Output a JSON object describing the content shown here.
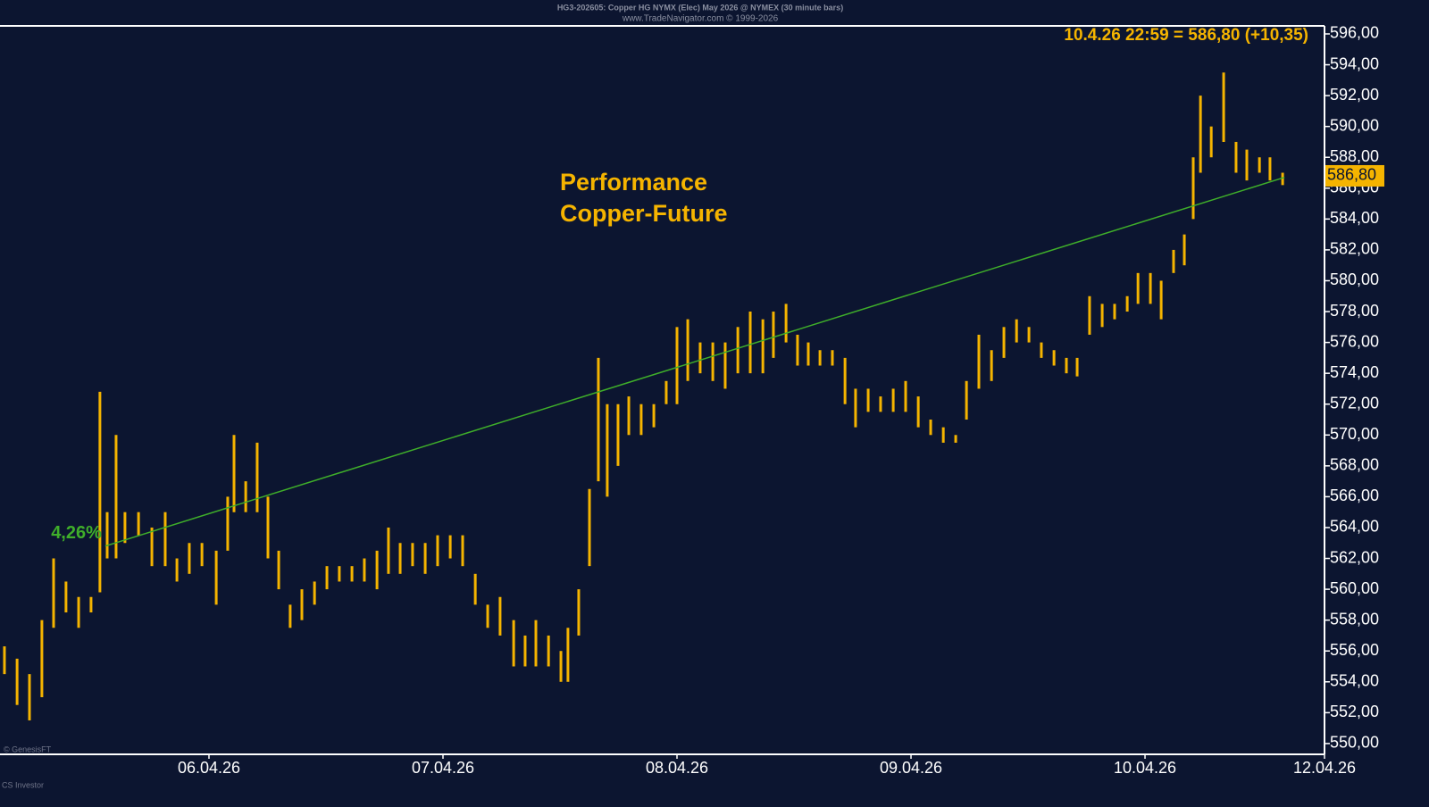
{
  "chart_data": {
    "type": "ohlc",
    "title": "HG3-202605: Copper HG NYMX (Elec) May 2026 @ NYMEX (30 minute bars)",
    "subtitle": "www.TradeNavigator.com © 1999-2026",
    "header_label": "10.4.26 22:59 = 586,80 (+10,35)",
    "annotation": [
      "Performance",
      "Copper-Future"
    ],
    "footer": [
      "© GenesisFT",
      "CS Investor"
    ],
    "color": "#f5b400",
    "last_price": {
      "value": 586.8,
      "label": "586,80"
    },
    "x": [
      5.126,
      5.18,
      5.233,
      5.286,
      5.336,
      5.389,
      5.443,
      5.496,
      5.534,
      5.565,
      5.603,
      5.641,
      5.699,
      5.756,
      5.813,
      5.863,
      5.916,
      5.97,
      6.031,
      6.08,
      6.107,
      6.157,
      6.206,
      6.252,
      6.298,
      6.347,
      6.397,
      6.451,
      6.504,
      6.557,
      6.611,
      6.664,
      6.718,
      6.767,
      6.817,
      6.87,
      6.924,
      6.977,
      7.031,
      7.084,
      7.138,
      7.191,
      7.244,
      7.302,
      7.351,
      7.397,
      7.451,
      7.504,
      7.534,
      7.58,
      7.626,
      7.664,
      7.702,
      7.748,
      7.794,
      7.847,
      7.901,
      7.954,
      8.0,
      8.046,
      8.099,
      8.153,
      8.206,
      8.26,
      8.313,
      8.367,
      8.412,
      8.466,
      8.515,
      8.561,
      8.611,
      8.664,
      8.718,
      8.763,
      8.817,
      8.87,
      8.924,
      8.977,
      9.031,
      9.084,
      9.138,
      9.191,
      9.237,
      9.29,
      9.344,
      9.397,
      9.451,
      9.504,
      9.557,
      9.611,
      9.664,
      9.71,
      9.763,
      9.817,
      9.87,
      9.924,
      9.97,
      10.023,
      10.069,
      10.122,
      10.168,
      10.206,
      10.237,
      10.283,
      10.336,
      10.389,
      10.435,
      10.489,
      10.534,
      10.588
    ],
    "high": [
      556.3,
      555.5,
      554.5,
      558,
      562,
      560.5,
      559.5,
      559.5,
      572.8,
      565,
      570,
      565,
      565,
      564,
      565,
      562,
      563,
      563,
      562.5,
      566,
      570,
      567,
      569.5,
      566,
      562.5,
      559,
      560,
      560.5,
      561.5,
      561.5,
      561.5,
      562,
      562.5,
      564,
      563,
      563,
      563,
      563.5,
      563.5,
      563.5,
      561,
      559,
      559.5,
      558,
      557,
      558,
      557,
      556,
      557.5,
      560,
      566.5,
      575,
      572,
      572,
      572.5,
      572,
      572,
      573.5,
      577,
      577.5,
      576,
      576,
      576,
      577,
      578,
      577.5,
      578,
      578.5,
      576.5,
      576,
      575.5,
      575.5,
      575,
      573,
      573,
      572.5,
      573,
      573.5,
      572.5,
      571,
      570.5,
      570,
      573.5,
      576.5,
      575.5,
      577,
      577.5,
      577,
      576,
      575.5,
      575,
      575,
      579,
      578.5,
      578.5,
      579,
      580.5,
      580.5,
      580,
      582,
      583,
      588,
      592,
      590,
      593.5,
      589,
      588.5,
      588,
      588,
      587
    ],
    "low": [
      554.5,
      552.5,
      551.5,
      553,
      557.5,
      558.5,
      557.5,
      558.5,
      559.8,
      562,
      562,
      563,
      563.5,
      561.5,
      561.5,
      560.5,
      561,
      561.5,
      559,
      562.5,
      565,
      565,
      565,
      562,
      560,
      557.5,
      558,
      559,
      560,
      560.5,
      560.5,
      560.5,
      560,
      561,
      561,
      561.5,
      561,
      561.5,
      562,
      561.5,
      559,
      557.5,
      557,
      555,
      555,
      555,
      555,
      554,
      554,
      557,
      561.5,
      567,
      566,
      568,
      570,
      570,
      570.5,
      572,
      572,
      573.5,
      574,
      573.5,
      573,
      574,
      574,
      574,
      575,
      576,
      574.5,
      574.5,
      574.5,
      574.5,
      572,
      570.5,
      571.5,
      571.5,
      571.5,
      571.5,
      570.5,
      570,
      569.5,
      569.5,
      571,
      573,
      573.5,
      575,
      576,
      576,
      575,
      574.5,
      574,
      573.8,
      576.5,
      577,
      577.5,
      578,
      578.5,
      578.5,
      577.5,
      580.5,
      581,
      584,
      587,
      588,
      589,
      587,
      586.5,
      587,
      586.5,
      586.2
    ],
    "trendline": {
      "x": [
        5.557,
        10.596
      ],
      "values": [
        562.8,
        586.7
      ],
      "color": "#3fae2a",
      "label": "4,26%"
    },
    "xlim": [
      5.107,
      10.767
    ],
    "xticks": [
      {
        "value": 6,
        "label": "06.04.26"
      },
      {
        "value": 7,
        "label": "07.04.26"
      },
      {
        "value": 8,
        "label": "08.04.26"
      },
      {
        "value": 9,
        "label": "09.04.26"
      },
      {
        "value": 10,
        "label": "10.04.26"
      },
      {
        "value": 10.767,
        "label": "12.04.26"
      }
    ],
    "ylim": [
      549.3,
      596.52
    ],
    "yticks": [
      {
        "value": 550,
        "label": "550,00"
      },
      {
        "value": 552,
        "label": "552,00"
      },
      {
        "value": 554,
        "label": "554,00"
      },
      {
        "value": 556,
        "label": "556,00"
      },
      {
        "value": 558,
        "label": "558,00"
      },
      {
        "value": 560,
        "label": "560,00"
      },
      {
        "value": 562,
        "label": "562,00"
      },
      {
        "value": 564,
        "label": "564,00"
      },
      {
        "value": 566,
        "label": "566,00"
      },
      {
        "value": 568,
        "label": "568,00"
      },
      {
        "value": 570,
        "label": "570,00"
      },
      {
        "value": 572,
        "label": "572,00"
      },
      {
        "value": 574,
        "label": "574,00"
      },
      {
        "value": 576,
        "label": "576,00"
      },
      {
        "value": 578,
        "label": "578,00"
      },
      {
        "value": 580,
        "label": "580,00"
      },
      {
        "value": 582,
        "label": "582,00"
      },
      {
        "value": 584,
        "label": "584,00"
      },
      {
        "value": 586,
        "label": "586,00"
      },
      {
        "value": 588,
        "label": "588,00"
      },
      {
        "value": 590,
        "label": "590,00"
      },
      {
        "value": 592,
        "label": "592,00"
      },
      {
        "value": 594,
        "label": "594,00"
      },
      {
        "value": 596,
        "label": "596,00"
      }
    ]
  }
}
